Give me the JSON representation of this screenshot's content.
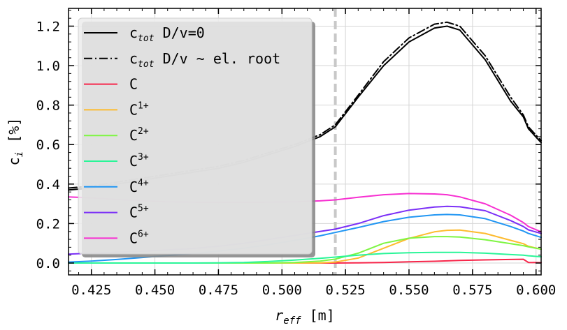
{
  "chart_data": {
    "type": "line",
    "xlabel": "r",
    "xlabel_sub": "eff",
    "xlabel_unit": "[m]",
    "ylabel": "c",
    "ylabel_sub": "i",
    "ylabel_unit": "[%]",
    "xlim": [
      0.416,
      0.602
    ],
    "ylim": [
      -0.06,
      1.29
    ],
    "xticks": [
      "0.425",
      "0.450",
      "0.475",
      "0.500",
      "0.525",
      "0.550",
      "0.575",
      "0.600"
    ],
    "yticks": [
      "0.0",
      "0.2",
      "0.4",
      "0.6",
      "0.8",
      "1.0",
      "1.2"
    ],
    "grid": true,
    "legend_position": "upper-left",
    "vline_x": 0.521,
    "x": [
      0.416,
      0.425,
      0.435,
      0.445,
      0.455,
      0.465,
      0.475,
      0.485,
      0.495,
      0.505,
      0.515,
      0.521,
      0.53,
      0.54,
      0.55,
      0.56,
      0.565,
      0.57,
      0.58,
      0.59,
      0.595,
      0.597,
      0.602
    ],
    "series": [
      {
        "name": "c",
        "sub": "tot",
        "suffix": " D/v=0",
        "color": "#000000",
        "dash": "solid",
        "values": [
          0.37,
          0.38,
          0.4,
          0.42,
          0.44,
          0.46,
          0.48,
          0.51,
          0.55,
          0.59,
          0.64,
          0.69,
          0.84,
          1.0,
          1.12,
          1.19,
          1.2,
          1.18,
          1.03,
          0.82,
          0.74,
          0.68,
          0.61
        ]
      },
      {
        "name": "c",
        "sub": "tot",
        "suffix": " D/v ~ el. root",
        "color": "#000000",
        "dash": "dashdot",
        "values": [
          0.38,
          0.39,
          0.41,
          0.43,
          0.45,
          0.47,
          0.49,
          0.52,
          0.56,
          0.6,
          0.65,
          0.7,
          0.85,
          1.02,
          1.14,
          1.21,
          1.22,
          1.2,
          1.05,
          0.84,
          0.75,
          0.69,
          0.62
        ]
      },
      {
        "name": "C",
        "sup": "",
        "color": "#f7264a",
        "dash": "solid",
        "values": [
          0.0,
          0.0,
          0.0,
          0.0,
          0.0,
          0.0,
          0.0,
          0.0,
          0.0,
          0.0,
          0.0,
          0.0,
          0.001,
          0.003,
          0.006,
          0.009,
          0.011,
          0.013,
          0.016,
          0.018,
          0.019,
          0.003,
          0.002
        ]
      },
      {
        "name": "C",
        "sup": "1+",
        "color": "#fdbb2f",
        "dash": "solid",
        "values": [
          0.0,
          0.0,
          0.0,
          0.0,
          0.0,
          0.0,
          0.0,
          0.0,
          0.0,
          0.0,
          0.001,
          0.005,
          0.025,
          0.075,
          0.125,
          0.158,
          0.166,
          0.167,
          0.15,
          0.115,
          0.098,
          0.085,
          0.07
        ]
      },
      {
        "name": "C",
        "sup": "2+",
        "color": "#7ef542",
        "dash": "solid",
        "values": [
          0.0,
          0.0,
          0.0,
          0.0,
          0.0,
          0.0,
          0.0,
          0.0,
          0.0,
          0.003,
          0.01,
          0.02,
          0.05,
          0.1,
          0.126,
          0.134,
          0.134,
          0.132,
          0.118,
          0.098,
          0.088,
          0.082,
          0.07
        ]
      },
      {
        "name": "C",
        "sup": "3+",
        "color": "#2af598",
        "dash": "solid",
        "values": [
          0.0,
          0.0,
          0.0,
          0.0,
          0.0,
          0.0,
          0.001,
          0.003,
          0.008,
          0.015,
          0.024,
          0.03,
          0.04,
          0.048,
          0.052,
          0.054,
          0.054,
          0.054,
          0.05,
          0.043,
          0.04,
          0.037,
          0.032
        ]
      },
      {
        "name": "C",
        "sup": "4+",
        "color": "#2196f3",
        "dash": "solid",
        "values": [
          0.005,
          0.01,
          0.018,
          0.028,
          0.038,
          0.048,
          0.06,
          0.075,
          0.093,
          0.115,
          0.138,
          0.155,
          0.18,
          0.21,
          0.232,
          0.244,
          0.246,
          0.244,
          0.225,
          0.185,
          0.162,
          0.15,
          0.13
        ]
      },
      {
        "name": "C",
        "sup": "5+",
        "color": "#7b2ff7",
        "dash": "solid",
        "values": [
          0.045,
          0.05,
          0.055,
          0.06,
          0.066,
          0.074,
          0.085,
          0.1,
          0.12,
          0.14,
          0.16,
          0.172,
          0.2,
          0.24,
          0.268,
          0.284,
          0.287,
          0.285,
          0.265,
          0.215,
          0.185,
          0.168,
          0.15
        ]
      },
      {
        "name": "C",
        "sup": "6+",
        "color": "#f72fd1",
        "dash": "solid",
        "values": [
          0.335,
          0.33,
          0.322,
          0.315,
          0.31,
          0.308,
          0.307,
          0.307,
          0.308,
          0.31,
          0.315,
          0.32,
          0.333,
          0.346,
          0.352,
          0.35,
          0.346,
          0.335,
          0.3,
          0.242,
          0.205,
          0.185,
          0.158
        ]
      }
    ]
  }
}
